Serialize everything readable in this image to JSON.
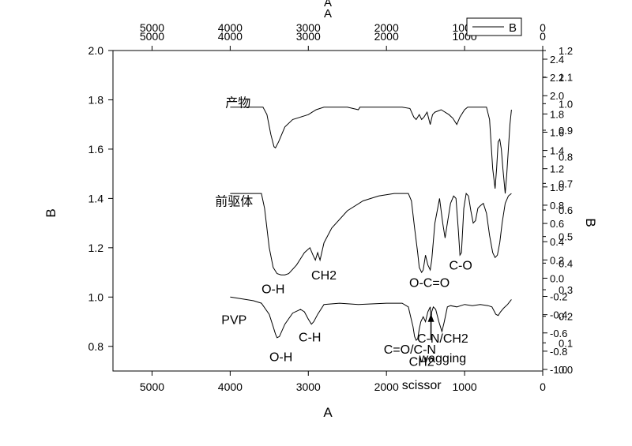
{
  "chart_data": {
    "type": "line",
    "xlabel": "A",
    "ylabel": "B",
    "top_axis_title": "A",
    "right_axis_title": "B",
    "xlim": [
      5500,
      0
    ],
    "ylim": [
      0.7,
      2.0
    ],
    "x_ticks": [
      "5000",
      "4000",
      "3000",
      "2000",
      "1000",
      "0"
    ],
    "y_ticks": [
      "0.8",
      "1.0",
      "1.2",
      "1.4",
      "1.6",
      "1.8",
      "2.0"
    ],
    "top_ticks": [
      "5000",
      "4000",
      "3000",
      "2000",
      "1000",
      "0"
    ],
    "right_ticks": [
      "2.4",
      "2.2",
      "2.0",
      "1.8",
      "1.6",
      "1.4",
      "1.2",
      "1.0",
      "0.8",
      "0.6",
      "0.4",
      "0.2",
      "0.0",
      "-0.2",
      "-0.4",
      "-0.6",
      "-0.8",
      "-1.0"
    ],
    "right_ticks_overlay": [
      "1.2",
      "1.1",
      "1.0",
      "0.9",
      "0.8",
      "0.7",
      "0.6",
      "0.5",
      "0.4",
      "0.3",
      "0.2",
      "0.1",
      "0.0"
    ],
    "legend": {
      "label": "B",
      "placement": "top-right"
    },
    "series": [
      {
        "name": "产物",
        "points": [
          [
            4000,
            1.77
          ],
          [
            3800,
            1.77
          ],
          [
            3620,
            1.77
          ],
          [
            3580,
            1.77
          ],
          [
            3530,
            1.74
          ],
          [
            3480,
            1.66
          ],
          [
            3440,
            1.61
          ],
          [
            3420,
            1.605
          ],
          [
            3380,
            1.63
          ],
          [
            3300,
            1.69
          ],
          [
            3200,
            1.72
          ],
          [
            3100,
            1.73
          ],
          [
            3000,
            1.74
          ],
          [
            2950,
            1.75
          ],
          [
            2900,
            1.76
          ],
          [
            2850,
            1.765
          ],
          [
            2800,
            1.77
          ],
          [
            2500,
            1.77
          ],
          [
            2360,
            1.76
          ],
          [
            2340,
            1.77
          ],
          [
            2000,
            1.77
          ],
          [
            1800,
            1.77
          ],
          [
            1700,
            1.765
          ],
          [
            1650,
            1.73
          ],
          [
            1620,
            1.72
          ],
          [
            1580,
            1.74
          ],
          [
            1550,
            1.72
          ],
          [
            1520,
            1.73
          ],
          [
            1480,
            1.75
          ],
          [
            1440,
            1.7
          ],
          [
            1410,
            1.74
          ],
          [
            1380,
            1.75
          ],
          [
            1300,
            1.76
          ],
          [
            1200,
            1.74
          ],
          [
            1150,
            1.725
          ],
          [
            1100,
            1.7
          ],
          [
            1060,
            1.73
          ],
          [
            1000,
            1.76
          ],
          [
            960,
            1.77
          ],
          [
            900,
            1.77
          ],
          [
            800,
            1.77
          ],
          [
            720,
            1.77
          ],
          [
            680,
            1.72
          ],
          [
            640,
            1.52
          ],
          [
            610,
            1.44
          ],
          [
            590,
            1.52
          ],
          [
            570,
            1.63
          ],
          [
            550,
            1.64
          ],
          [
            530,
            1.6
          ],
          [
            510,
            1.52
          ],
          [
            480,
            1.42
          ],
          [
            460,
            1.5
          ],
          [
            440,
            1.6
          ],
          [
            420,
            1.7
          ],
          [
            400,
            1.76
          ]
        ],
        "label": "产物"
      },
      {
        "name": "前驱体",
        "points": [
          [
            4000,
            1.42
          ],
          [
            3800,
            1.42
          ],
          [
            3600,
            1.42
          ],
          [
            3560,
            1.36
          ],
          [
            3500,
            1.2
          ],
          [
            3450,
            1.12
          ],
          [
            3400,
            1.095
          ],
          [
            3350,
            1.09
          ],
          [
            3300,
            1.09
          ],
          [
            3250,
            1.095
          ],
          [
            3150,
            1.13
          ],
          [
            3050,
            1.18
          ],
          [
            2980,
            1.2
          ],
          [
            2940,
            1.17
          ],
          [
            2910,
            1.15
          ],
          [
            2880,
            1.18
          ],
          [
            2850,
            1.15
          ],
          [
            2800,
            1.22
          ],
          [
            2700,
            1.28
          ],
          [
            2500,
            1.35
          ],
          [
            2300,
            1.39
          ],
          [
            2100,
            1.41
          ],
          [
            1900,
            1.42
          ],
          [
            1720,
            1.42
          ],
          [
            1680,
            1.39
          ],
          [
            1640,
            1.28
          ],
          [
            1600,
            1.18
          ],
          [
            1580,
            1.12
          ],
          [
            1550,
            1.1
          ],
          [
            1530,
            1.11
          ],
          [
            1500,
            1.17
          ],
          [
            1470,
            1.13
          ],
          [
            1440,
            1.11
          ],
          [
            1420,
            1.15
          ],
          [
            1380,
            1.3
          ],
          [
            1320,
            1.4
          ],
          [
            1280,
            1.3
          ],
          [
            1250,
            1.24
          ],
          [
            1220,
            1.3
          ],
          [
            1180,
            1.38
          ],
          [
            1140,
            1.41
          ],
          [
            1110,
            1.4
          ],
          [
            1080,
            1.27
          ],
          [
            1060,
            1.17
          ],
          [
            1040,
            1.18
          ],
          [
            1010,
            1.36
          ],
          [
            980,
            1.42
          ],
          [
            950,
            1.41
          ],
          [
            920,
            1.35
          ],
          [
            890,
            1.3
          ],
          [
            860,
            1.31
          ],
          [
            830,
            1.36
          ],
          [
            800,
            1.37
          ],
          [
            760,
            1.38
          ],
          [
            720,
            1.34
          ],
          [
            680,
            1.25
          ],
          [
            640,
            1.18
          ],
          [
            610,
            1.16
          ],
          [
            580,
            1.17
          ],
          [
            550,
            1.22
          ],
          [
            520,
            1.3
          ],
          [
            480,
            1.38
          ],
          [
            440,
            1.41
          ],
          [
            400,
            1.42
          ]
        ],
        "label": "前驱体"
      },
      {
        "name": "PVP",
        "points": [
          [
            4000,
            1.0
          ],
          [
            3800,
            0.99
          ],
          [
            3700,
            0.985
          ],
          [
            3600,
            0.975
          ],
          [
            3500,
            0.93
          ],
          [
            3450,
            0.88
          ],
          [
            3420,
            0.85
          ],
          [
            3400,
            0.835
          ],
          [
            3370,
            0.84
          ],
          [
            3300,
            0.89
          ],
          [
            3200,
            0.935
          ],
          [
            3100,
            0.95
          ],
          [
            3050,
            0.94
          ],
          [
            3000,
            0.91
          ],
          [
            2960,
            0.89
          ],
          [
            2930,
            0.9
          ],
          [
            2880,
            0.93
          ],
          [
            2800,
            0.97
          ],
          [
            2600,
            0.975
          ],
          [
            2360,
            0.97
          ],
          [
            2000,
            0.975
          ],
          [
            1800,
            0.975
          ],
          [
            1720,
            0.96
          ],
          [
            1690,
            0.92
          ],
          [
            1660,
            0.88
          ],
          [
            1640,
            0.84
          ],
          [
            1620,
            0.825
          ],
          [
            1600,
            0.83
          ],
          [
            1580,
            0.87
          ],
          [
            1560,
            0.9
          ],
          [
            1530,
            0.92
          ],
          [
            1500,
            0.9
          ],
          [
            1470,
            0.94
          ],
          [
            1440,
            0.96
          ],
          [
            1430,
            0.9
          ],
          [
            1420,
            0.94
          ],
          [
            1400,
            0.96
          ],
          [
            1370,
            0.95
          ],
          [
            1330,
            0.9
          ],
          [
            1290,
            0.86
          ],
          [
            1260,
            0.9
          ],
          [
            1220,
            0.96
          ],
          [
            1180,
            0.965
          ],
          [
            1100,
            0.96
          ],
          [
            1000,
            0.97
          ],
          [
            900,
            0.965
          ],
          [
            800,
            0.97
          ],
          [
            700,
            0.965
          ],
          [
            650,
            0.96
          ],
          [
            600,
            0.93
          ],
          [
            570,
            0.925
          ],
          [
            540,
            0.94
          ],
          [
            500,
            0.955
          ],
          [
            450,
            0.97
          ],
          [
            400,
            0.99
          ]
        ],
        "label": "PVP"
      }
    ],
    "annotations": [
      {
        "text": "O-H",
        "x": 3450,
        "y": 1.035
      },
      {
        "text": "CH2",
        "x": 2800,
        "y": 1.09
      },
      {
        "text": "O-C=O",
        "x": 1450,
        "y": 1.06
      },
      {
        "text": "C-O",
        "x": 1050,
        "y": 1.13
      },
      {
        "text": "C-H",
        "x": 2980,
        "y": 0.84
      },
      {
        "text": "O-H",
        "x": 3350,
        "y": 0.76
      },
      {
        "text": "C=O/C-N",
        "x": 1700,
        "y": 0.79
      },
      {
        "text": "CH2",
        "x": 1550,
        "y": 0.74
      },
      {
        "text": "scissor",
        "x": 1550,
        "y": 0.645
      },
      {
        "text": "C-N/CH2",
        "x": 1280,
        "y": 0.835
      },
      {
        "text": "wagging",
        "x": 1280,
        "y": 0.755
      }
    ],
    "arrow": {
      "from": [
        1430,
        0.825
      ],
      "to": [
        1430,
        0.925
      ]
    },
    "grid": false
  }
}
